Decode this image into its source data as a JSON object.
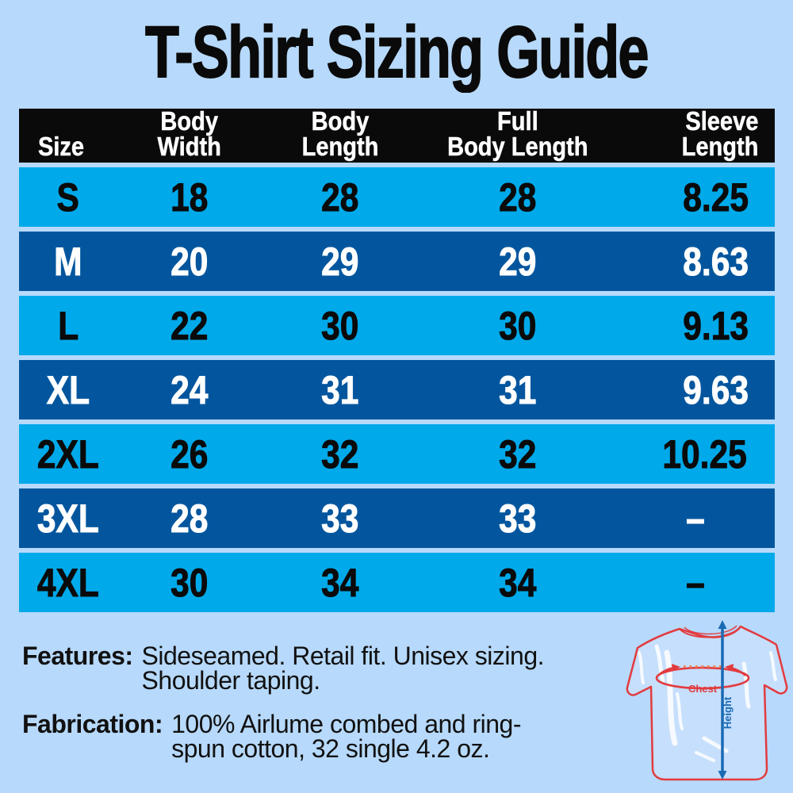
{
  "page": {
    "title": "T-Shirt Sizing Guide",
    "background_color": "#b7d9fb"
  },
  "chart_data": {
    "type": "table",
    "title": "T-Shirt Sizing Guide",
    "columns": [
      "Size",
      "Body Width",
      "Body Length",
      "Full Body Length",
      "Sleeve Length"
    ],
    "rows": [
      [
        "S",
        18,
        28,
        28,
        8.25
      ],
      [
        "M",
        20,
        29,
        29,
        8.63
      ],
      [
        "L",
        22,
        30,
        30,
        9.13
      ],
      [
        "XL",
        24,
        31,
        31,
        9.63
      ],
      [
        "2XL",
        26,
        32,
        32,
        10.25
      ],
      [
        "3XL",
        28,
        33,
        33,
        "–"
      ],
      [
        "4XL",
        30,
        34,
        34,
        "–"
      ]
    ],
    "row_striping": [
      "light",
      "dark",
      "light",
      "dark",
      "light",
      "dark",
      "light"
    ],
    "colors": {
      "row_light": "#00a9e9",
      "row_dark": "#03569e",
      "header_bg": "#0a0a0a",
      "header_text": "#ffffff",
      "text_on_light": "#0a0a0a",
      "text_on_dark": "#ffffff"
    }
  },
  "table": {
    "header_lines": [
      [
        "Size"
      ],
      [
        "Body",
        "Width"
      ],
      [
        "Body",
        "Length"
      ],
      [
        "Full",
        "Body Length"
      ],
      [
        "Sleeve",
        "Length"
      ]
    ]
  },
  "details": {
    "features_label": "Features:",
    "features_line1": "Sideseamed. Retail fit. Unisex sizing.",
    "features_line2": "Shoulder taping.",
    "fabrication_label": "Fabrication:",
    "fabrication_line1": "100% Airlume combed and ring-",
    "fabrication_line2": "spun cotton, 32 single 4.2 oz."
  },
  "diagram": {
    "chest_label": "Chest",
    "height_label": "Height",
    "shirt_outline_color": "#e23b3f",
    "height_arrow_color": "#1a6ab3"
  }
}
